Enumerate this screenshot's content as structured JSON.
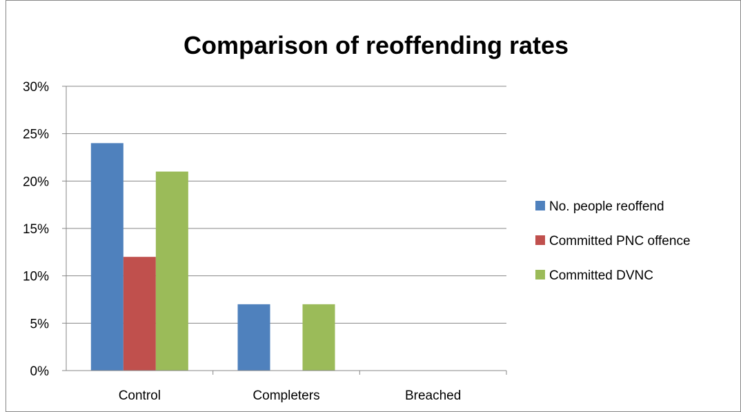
{
  "chart_data": {
    "type": "bar",
    "title": "Comparison of reoffending rates",
    "xlabel": "",
    "ylabel": "",
    "categories": [
      "Control",
      "Completers",
      "Breached"
    ],
    "series": [
      {
        "name": "No. people reoffend",
        "values": [
          24,
          7,
          0
        ],
        "color": "#4F81BD"
      },
      {
        "name": "Committed PNC offence",
        "values": [
          12,
          0,
          0
        ],
        "color": "#C0504D"
      },
      {
        "name": "Committed DVNC",
        "values": [
          21,
          7,
          0
        ],
        "color": "#9BBB59"
      }
    ],
    "ylim": [
      0,
      30
    ],
    "yticks": [
      0,
      5,
      10,
      15,
      20,
      25,
      30
    ],
    "ytick_labels": [
      "0%",
      "5%",
      "10%",
      "15%",
      "20%",
      "25%",
      "30%"
    ],
    "y_unit": "percent",
    "grid": true,
    "legend_position": "right"
  }
}
